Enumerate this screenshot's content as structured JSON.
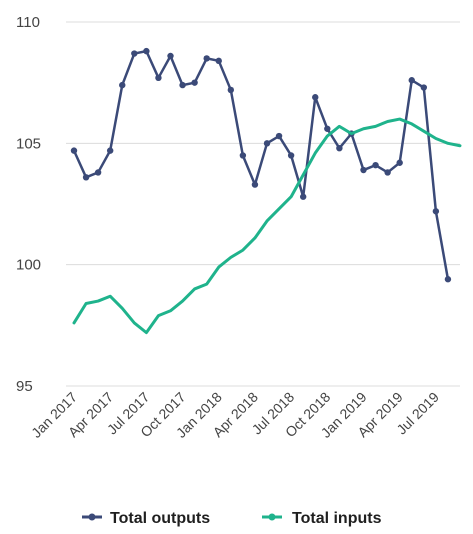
{
  "chart_data": {
    "type": "line",
    "title": "",
    "xlabel": "",
    "ylabel": "",
    "ylim": [
      95,
      110
    ],
    "yticks": [
      95,
      100,
      105,
      110
    ],
    "grid": true,
    "legend_position": "bottom",
    "x_tick_labels": [
      "Jan 2017",
      "Apr 2017",
      "Jul 2017",
      "Oct 2017",
      "Jan 2018",
      "Apr 2018",
      "Jul 2018",
      "Oct 2018",
      "Jan 2019",
      "Apr 2019",
      "Jul 2019"
    ],
    "x": [
      "Jan 2017",
      "Feb 2017",
      "Mar 2017",
      "Apr 2017",
      "May 2017",
      "Jun 2017",
      "Jul 2017",
      "Aug 2017",
      "Sep 2017",
      "Oct 2017",
      "Nov 2017",
      "Dec 2017",
      "Jan 2018",
      "Feb 2018",
      "Mar 2018",
      "Apr 2018",
      "May 2018",
      "Jun 2018",
      "Jul 2018",
      "Aug 2018",
      "Sep 2018",
      "Oct 2018",
      "Nov 2018",
      "Dec 2018",
      "Jan 2019",
      "Feb 2019",
      "Mar 2019",
      "Apr 2019",
      "May 2019",
      "Jun 2019",
      "Jul 2019",
      "Aug 2019",
      "Sep 2019"
    ],
    "series": [
      {
        "name": "Total outputs",
        "color": "#3b4a78",
        "markers": true,
        "values": [
          104.7,
          103.6,
          103.8,
          104.7,
          107.4,
          108.7,
          108.8,
          107.7,
          108.6,
          107.4,
          107.5,
          108.5,
          108.4,
          107.2,
          104.5,
          103.3,
          105.0,
          105.3,
          104.5,
          102.8,
          106.9,
          105.6,
          104.8,
          105.4,
          103.9,
          104.1,
          103.8,
          104.2,
          107.6,
          107.3,
          102.2,
          99.4,
          null
        ]
      },
      {
        "name": "Total inputs",
        "color": "#1fb38c",
        "markers": false,
        "values": [
          97.6,
          98.4,
          98.5,
          98.7,
          98.2,
          97.6,
          97.2,
          97.9,
          98.1,
          98.5,
          99.0,
          99.2,
          99.9,
          100.3,
          100.6,
          101.1,
          101.8,
          102.3,
          102.8,
          103.7,
          104.6,
          105.3,
          105.7,
          105.4,
          105.6,
          105.7,
          105.9,
          106.0,
          105.8,
          105.5,
          105.2,
          105.0,
          104.9
        ]
      }
    ]
  }
}
